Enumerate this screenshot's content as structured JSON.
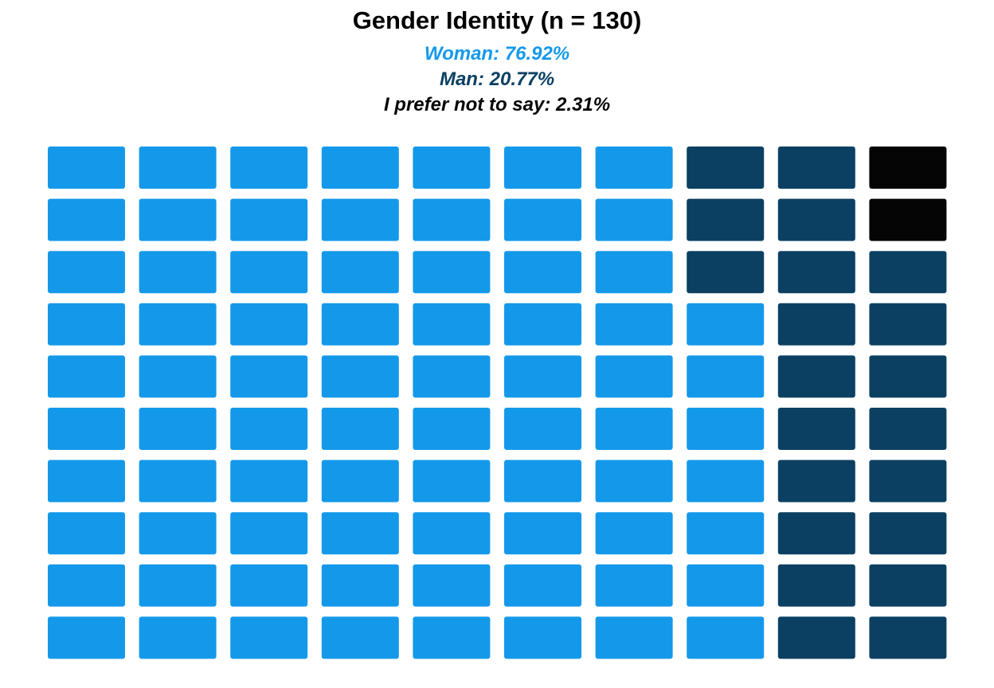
{
  "chart_data": {
    "type": "waffle",
    "title": "Gender Identity (n = 130)",
    "grid": {
      "rows": 10,
      "columns": 10,
      "fill_order": "column-major, bottom-to-top, left-to-right"
    },
    "categories": [
      {
        "name": "Woman",
        "percent": 76.92,
        "label": "Woman: 76.92%",
        "color": "#1499EA"
      },
      {
        "name": "Man",
        "percent": 20.77,
        "label": "Man: 20.77%",
        "color": "#0B4062"
      },
      {
        "name": "I prefer not to say",
        "percent": 2.31,
        "label": "I prefer not to say: 2.31%",
        "color": "#050505"
      }
    ]
  }
}
